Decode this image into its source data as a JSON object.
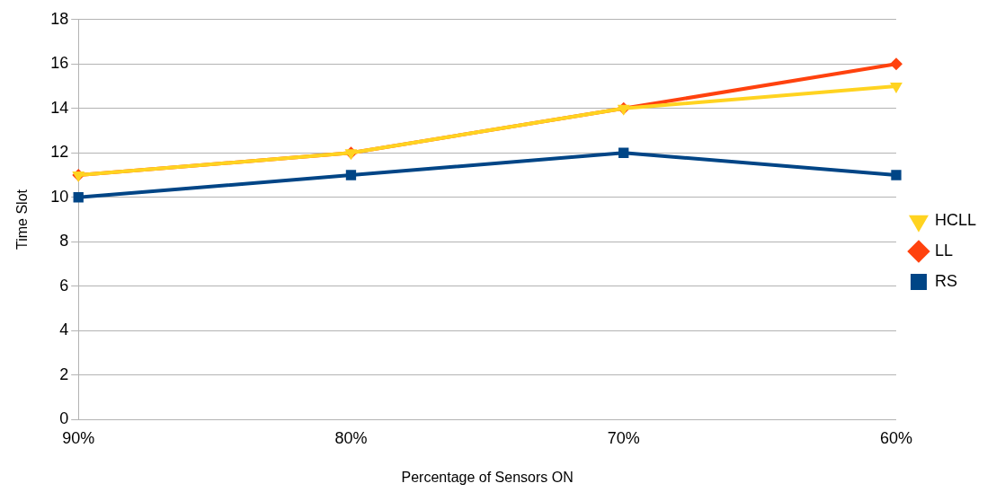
{
  "chart_data": {
    "type": "line",
    "xlabel": "Percentage of Sensors ON",
    "ylabel": "Time Slot",
    "categories": [
      "90%",
      "80%",
      "70%",
      "60%"
    ],
    "series": [
      {
        "name": "RS",
        "color": "#004586",
        "values": [
          10,
          11,
          12,
          11
        ],
        "marker": "square"
      },
      {
        "name": "LL",
        "color": "#ff420e",
        "values": [
          11,
          12,
          14,
          16
        ],
        "marker": "diamond"
      },
      {
        "name": "HCLL",
        "color": "#ffd320",
        "values": [
          11,
          12,
          14,
          15
        ],
        "marker": "triangle"
      }
    ],
    "ylim": [
      0,
      18
    ],
    "yticks": [
      0,
      2,
      4,
      6,
      8,
      10,
      12,
      14,
      16,
      18
    ],
    "grid": "y",
    "legend": "right",
    "line_style": "solid"
  }
}
